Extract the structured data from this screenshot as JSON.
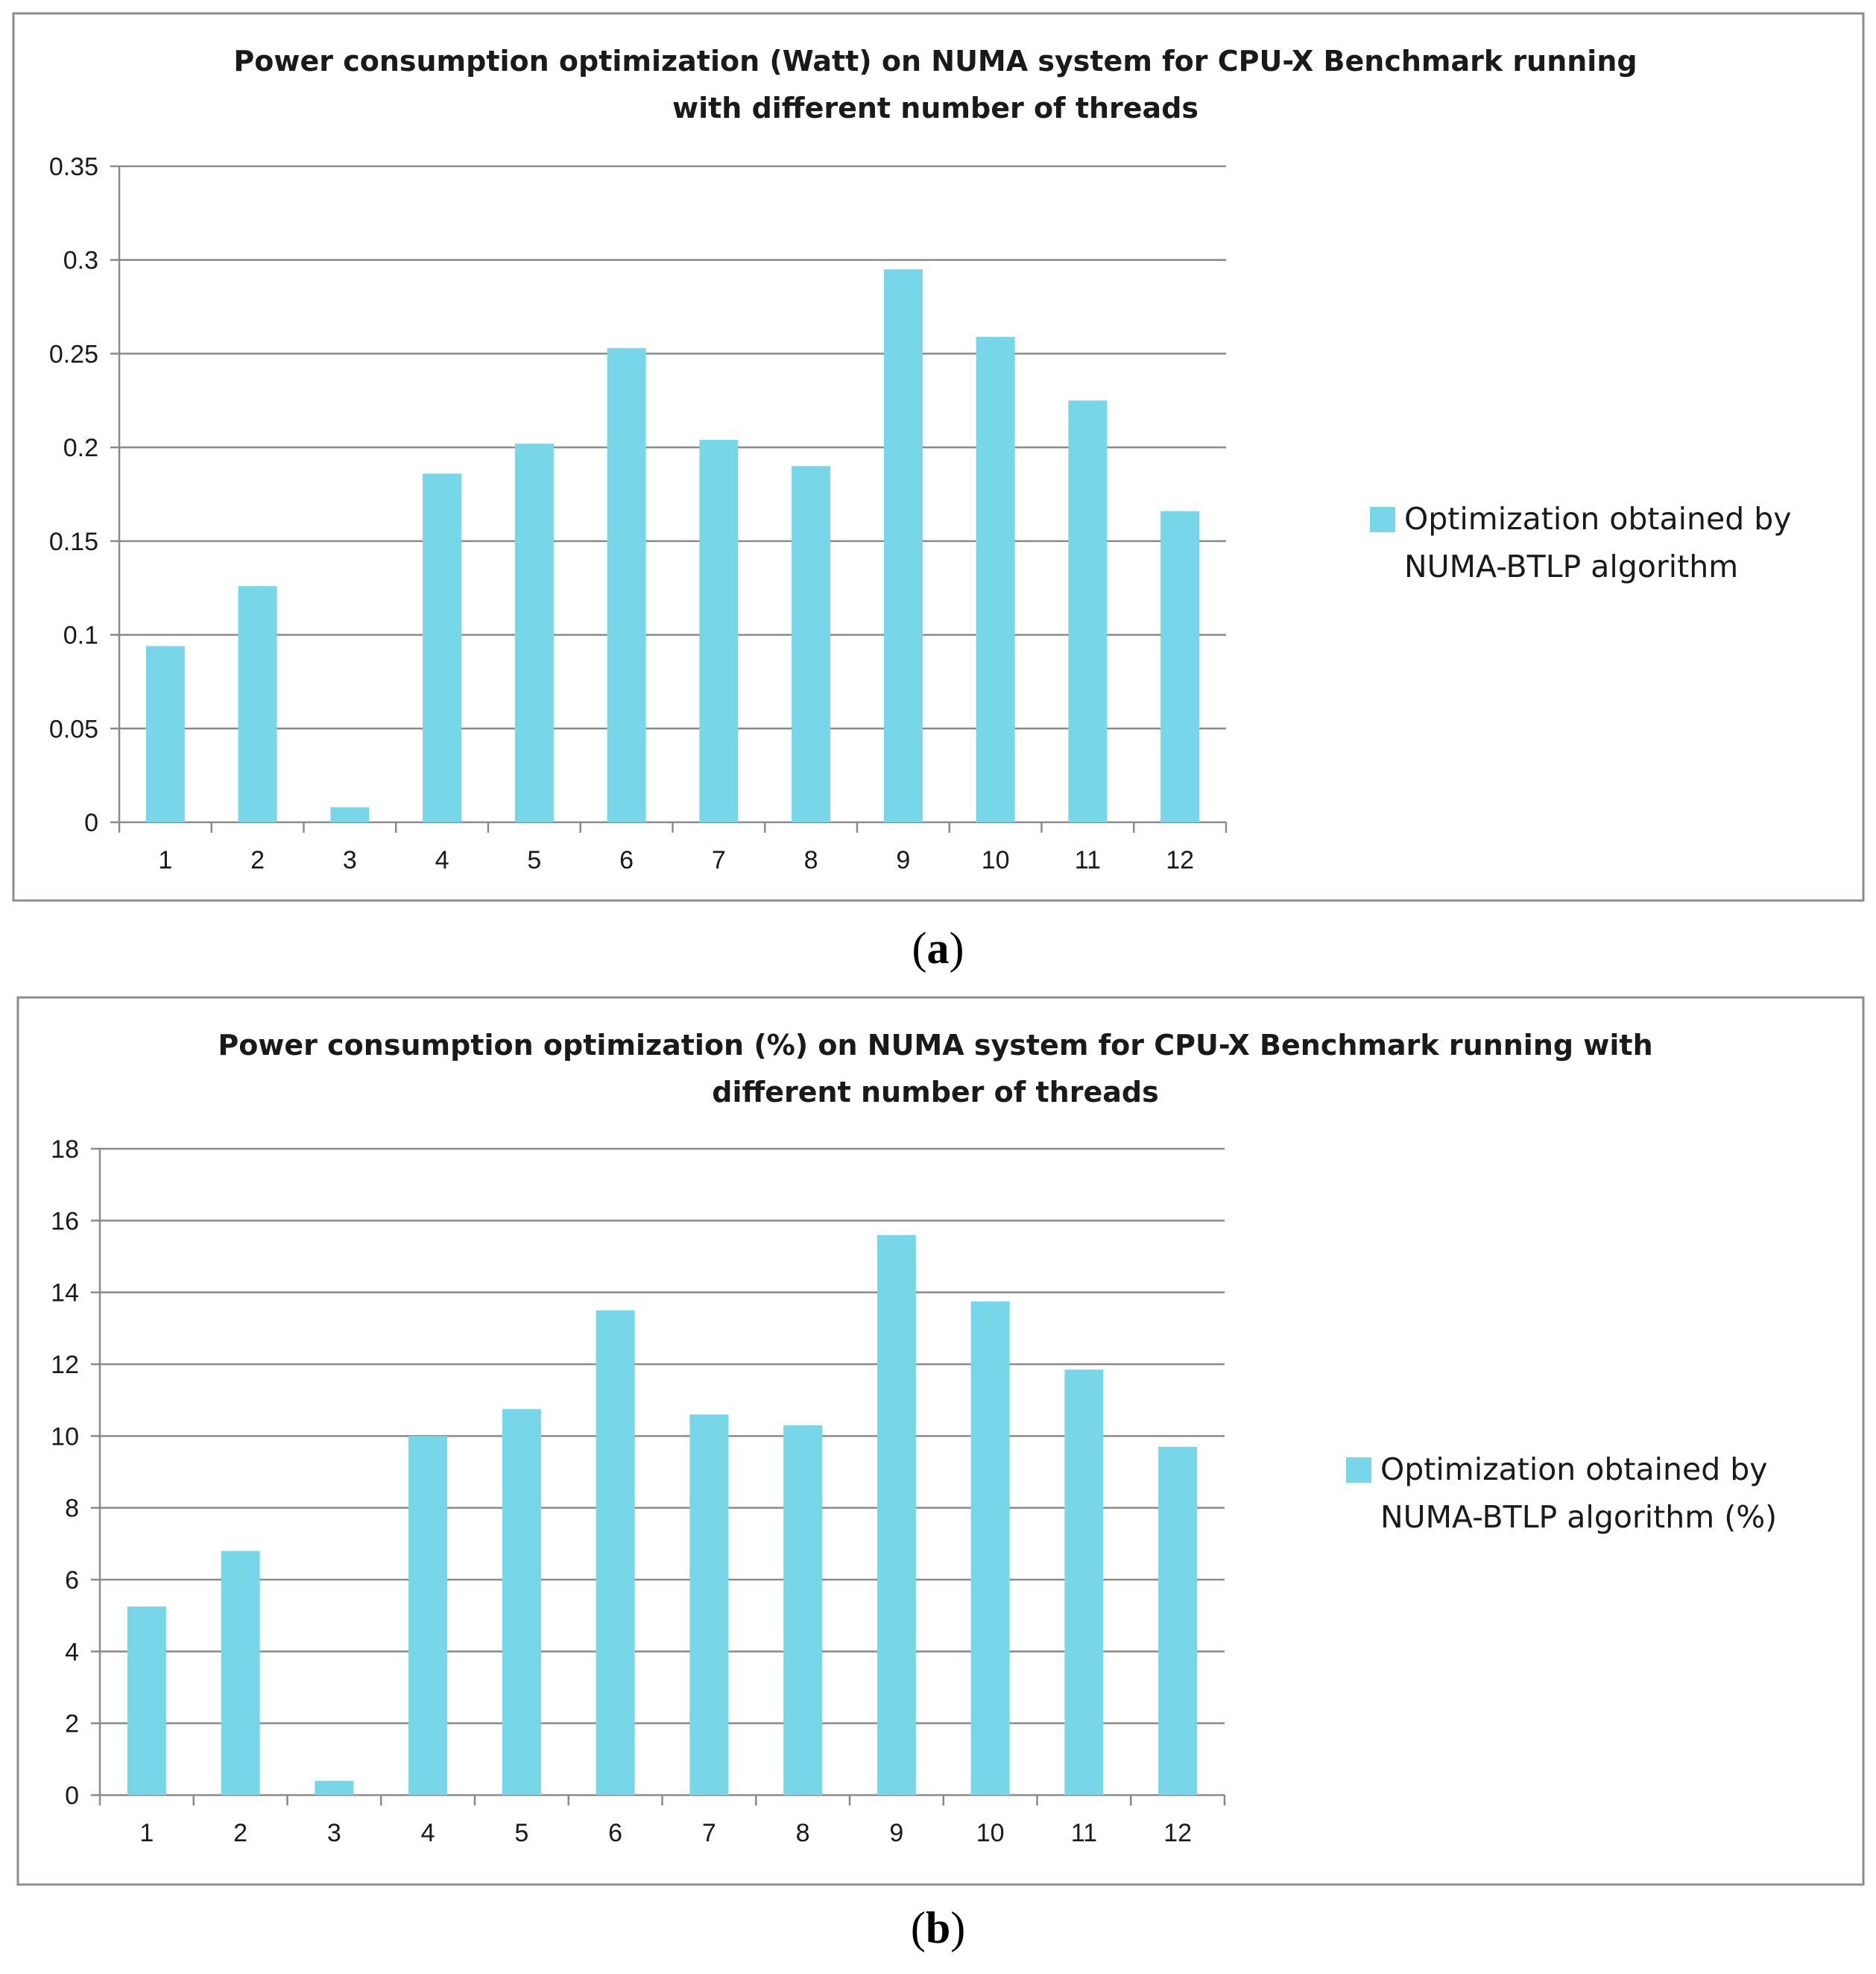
{
  "chart_data": [
    {
      "type": "bar",
      "panel_label": "a",
      "title_lines": [
        "Power consumption optimization (Watt) on NUMA system for CPU-X  Benchmark running",
        "with different number of threads"
      ],
      "categories": [
        "1",
        "2",
        "3",
        "4",
        "5",
        "6",
        "7",
        "8",
        "9",
        "10",
        "11",
        "12"
      ],
      "series": [
        {
          "name": "Optimization obtained by NUMA-BTLP algorithm",
          "legend_lines": [
            "Optimization obtained by",
            "NUMA-BTLP algorithm"
          ],
          "values": [
            0.094,
            0.126,
            0.008,
            0.186,
            0.202,
            0.253,
            0.204,
            0.19,
            0.295,
            0.259,
            0.225,
            0.166
          ]
        }
      ],
      "yticks": [
        "0",
        "0.05",
        "0.1",
        "0.15",
        "0.2",
        "0.25",
        "0.3",
        "0.35"
      ],
      "ylim": [
        0,
        0.35
      ],
      "xlabel": "",
      "ylabel": "",
      "grid": true,
      "legend_position": "right",
      "color": "#77d7e8"
    },
    {
      "type": "bar",
      "panel_label": "b",
      "title_lines": [
        "Power consumption optimization (%) on NUMA system for CPU-X  Benchmark running with",
        "different number of threads"
      ],
      "categories": [
        "1",
        "2",
        "3",
        "4",
        "5",
        "6",
        "7",
        "8",
        "9",
        "10",
        "11",
        "12"
      ],
      "series": [
        {
          "name": "Optimization obtained by NUMA-BTLP algorithm (%)",
          "legend_lines": [
            "Optimization obtained by",
            "NUMA-BTLP algorithm (%)"
          ],
          "values": [
            5.25,
            6.8,
            0.4,
            10.0,
            10.75,
            13.5,
            10.6,
            10.3,
            15.6,
            13.75,
            11.85,
            9.7
          ]
        }
      ],
      "yticks": [
        "0",
        "2",
        "4",
        "6",
        "8",
        "10",
        "12",
        "14",
        "16",
        "18"
      ],
      "ylim": [
        0,
        18
      ],
      "xlabel": "",
      "ylabel": "",
      "grid": true,
      "legend_position": "right",
      "color": "#77d7e8"
    }
  ]
}
